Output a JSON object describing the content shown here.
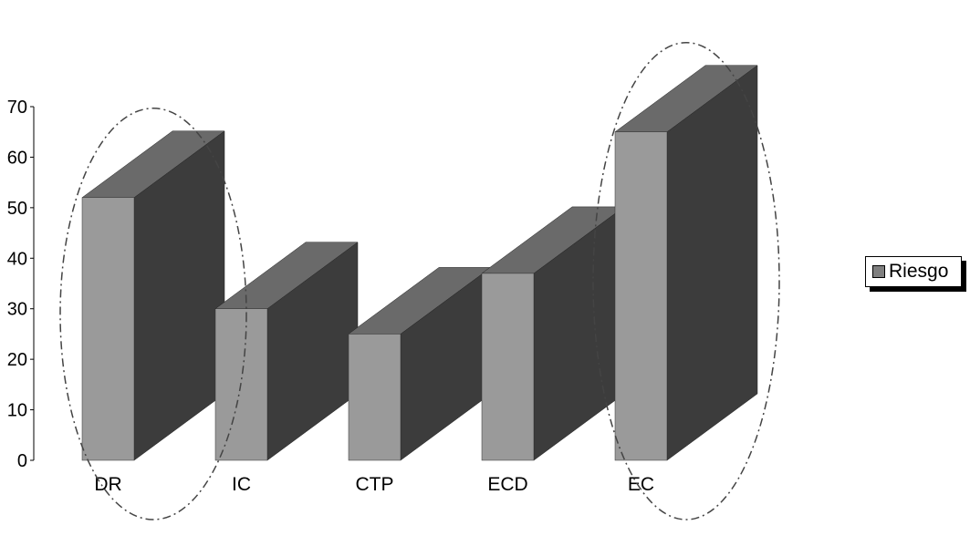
{
  "chart_data": {
    "type": "bar",
    "categories": [
      "DR",
      "IC",
      "CTP",
      "ECD",
      "EC"
    ],
    "series": [
      {
        "name": "Riesgo",
        "values": [
          52,
          30,
          25,
          37,
          65
        ]
      }
    ],
    "y_ticks": [
      "0",
      "10",
      "20",
      "30",
      "40",
      "50",
      "60",
      "70"
    ],
    "ylim": [
      0,
      70
    ],
    "title": "",
    "xlabel": "",
    "ylabel": "",
    "legend_position": "right",
    "grid": false,
    "style": "3d-column",
    "highlighted_categories": [
      "DR",
      "EC"
    ],
    "colors": {
      "front": "#9a9a9a",
      "top": "#6a6a6a",
      "side": "#3c3c3c",
      "legend_swatch": "#7f7f7f"
    }
  }
}
